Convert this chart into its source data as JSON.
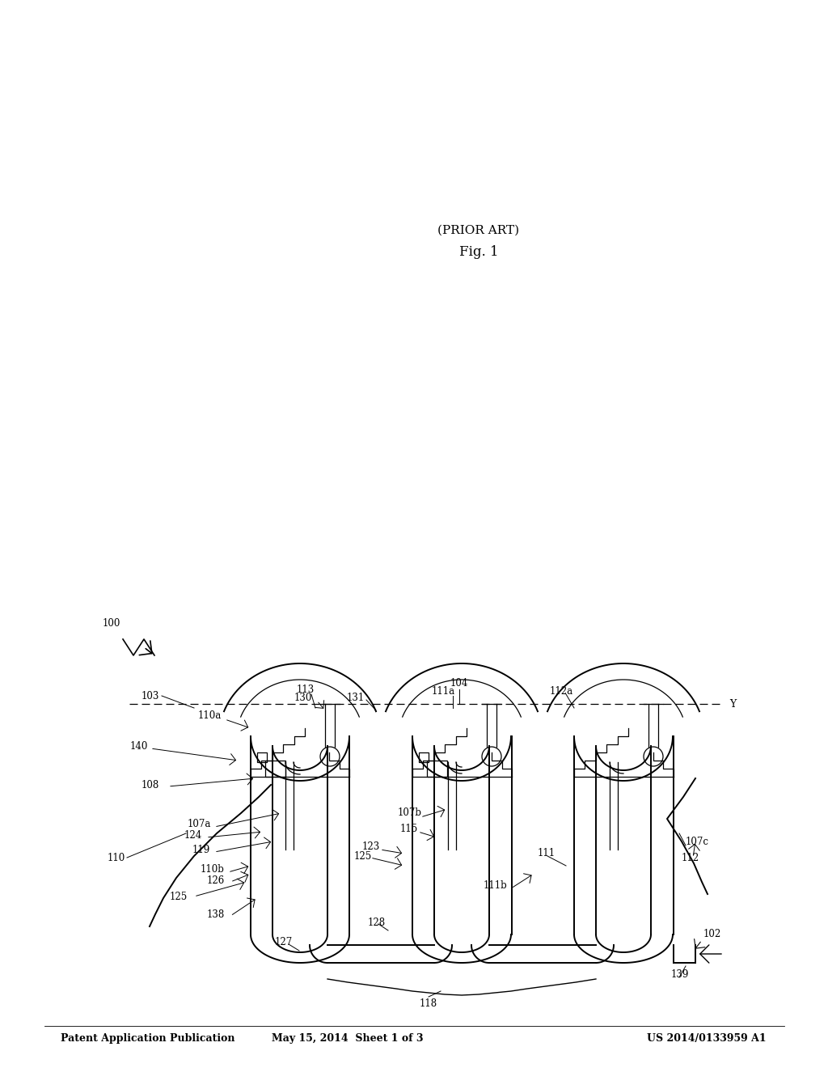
{
  "header_left": "Patent Application Publication",
  "header_center": "May 15, 2014  Sheet 1 of 3",
  "header_right": "US 2014/0133959 A1",
  "fig_label": "Fig. 1",
  "fig_sublabel": "(PRIOR ART)",
  "bg_color": "#ffffff",
  "line_color": "#000000",
  "header_fontsize": 9,
  "label_fontsize": 8.5,
  "fig_label_fontsize": 11
}
